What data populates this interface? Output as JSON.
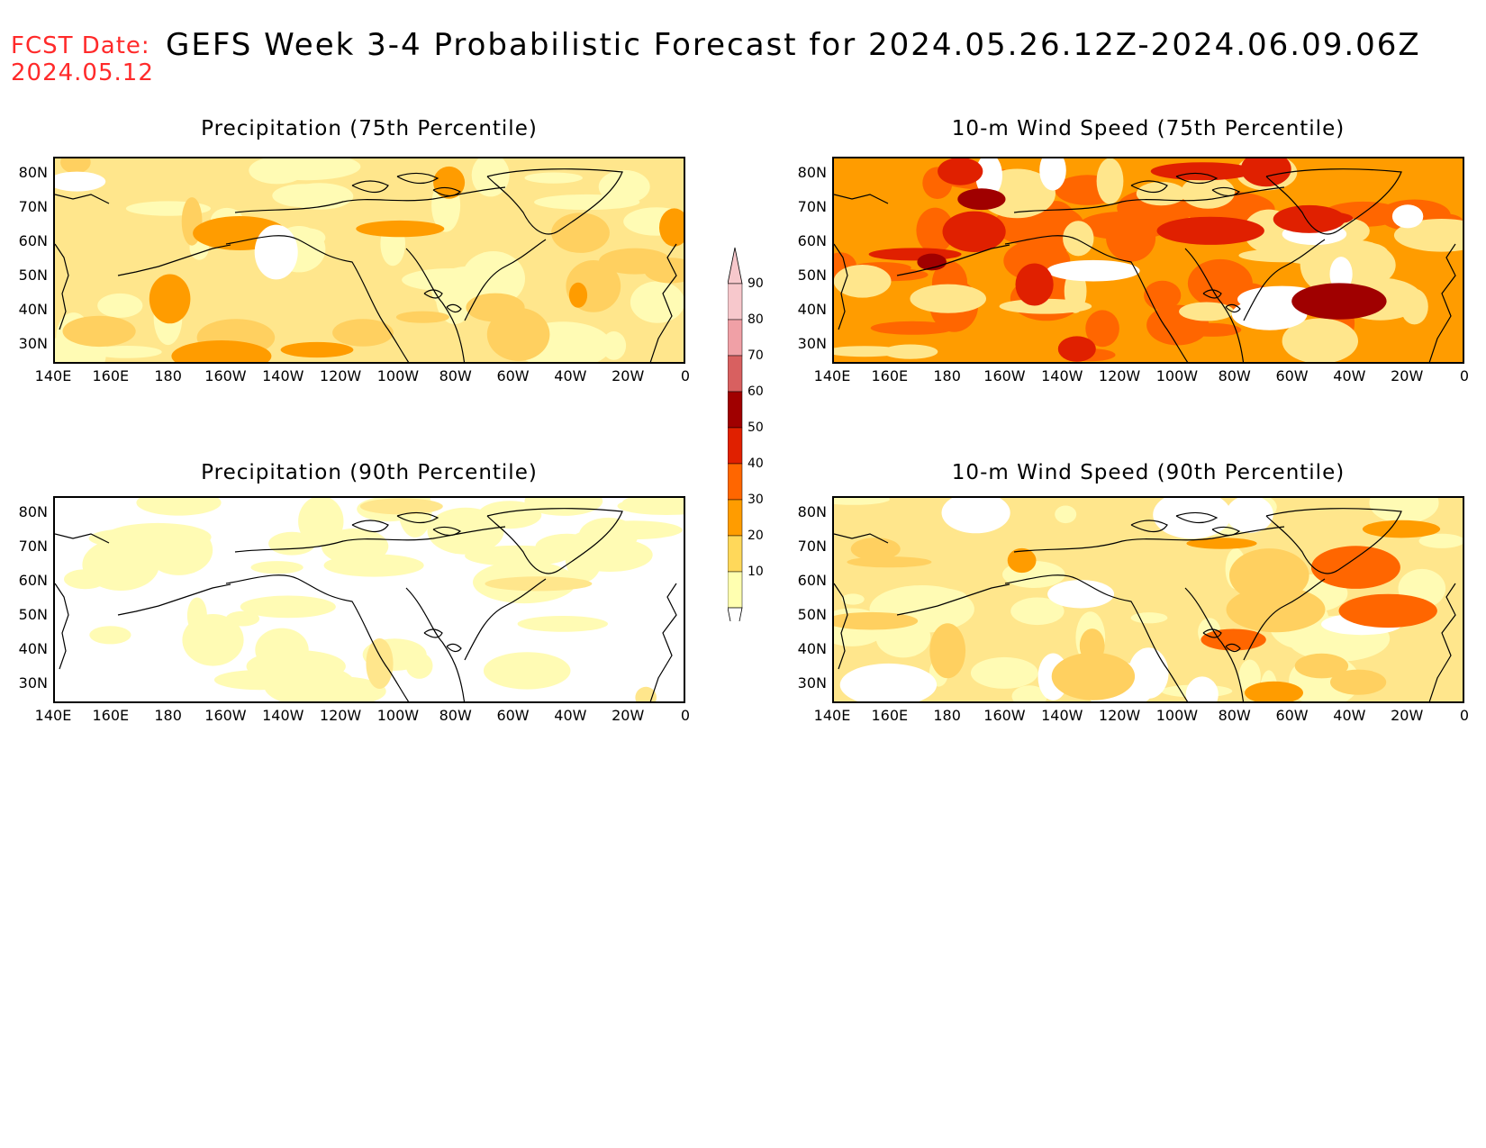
{
  "header": {
    "fcst_label": "FCST Date:",
    "fcst_date": "2024.05.12",
    "title": "GEFS Week 3-4 Probabilistic Forecast for 2024.05.26.12Z-2024.06.09.06Z"
  },
  "panels": [
    {
      "title": "Precipitation (75th Percentile)",
      "theme": "precip75"
    },
    {
      "title": "10-m Wind Speed (75th Percentile)",
      "theme": "wind75"
    },
    {
      "title": "Precipitation (90th Percentile)",
      "theme": "precip90"
    },
    {
      "title": "10-m Wind Speed (90th Percentile)",
      "theme": "wind90"
    }
  ],
  "lat_labels": [
    "80N",
    "70N",
    "60N",
    "50N",
    "40N",
    "30N"
  ],
  "lon_labels": [
    "140E",
    "160E",
    "180",
    "160W",
    "140W",
    "120W",
    "100W",
    "80W",
    "60W",
    "40W",
    "20W",
    "0"
  ],
  "colorbar": {
    "levels": [
      "90",
      "80",
      "70",
      "60",
      "50",
      "40",
      "30",
      "20",
      "10"
    ],
    "colors": [
      "#f7c8cc",
      "#f0a0a6",
      "#d86060",
      "#a00000",
      "#e02000",
      "#ff6600",
      "#ff9c00",
      "#ffd85a",
      "#ffffb0"
    ]
  },
  "colors": {
    "white": "#ffffff",
    "pale_yellow": "#fffbb4",
    "light_yellow": "#ffe68c",
    "yellow_orange": "#ffd060",
    "orange": "#ff9c00",
    "dark_orange": "#ff6600",
    "red": "#e02000",
    "dark_red": "#a00000",
    "forecast_red": "#ff2a2a"
  }
}
